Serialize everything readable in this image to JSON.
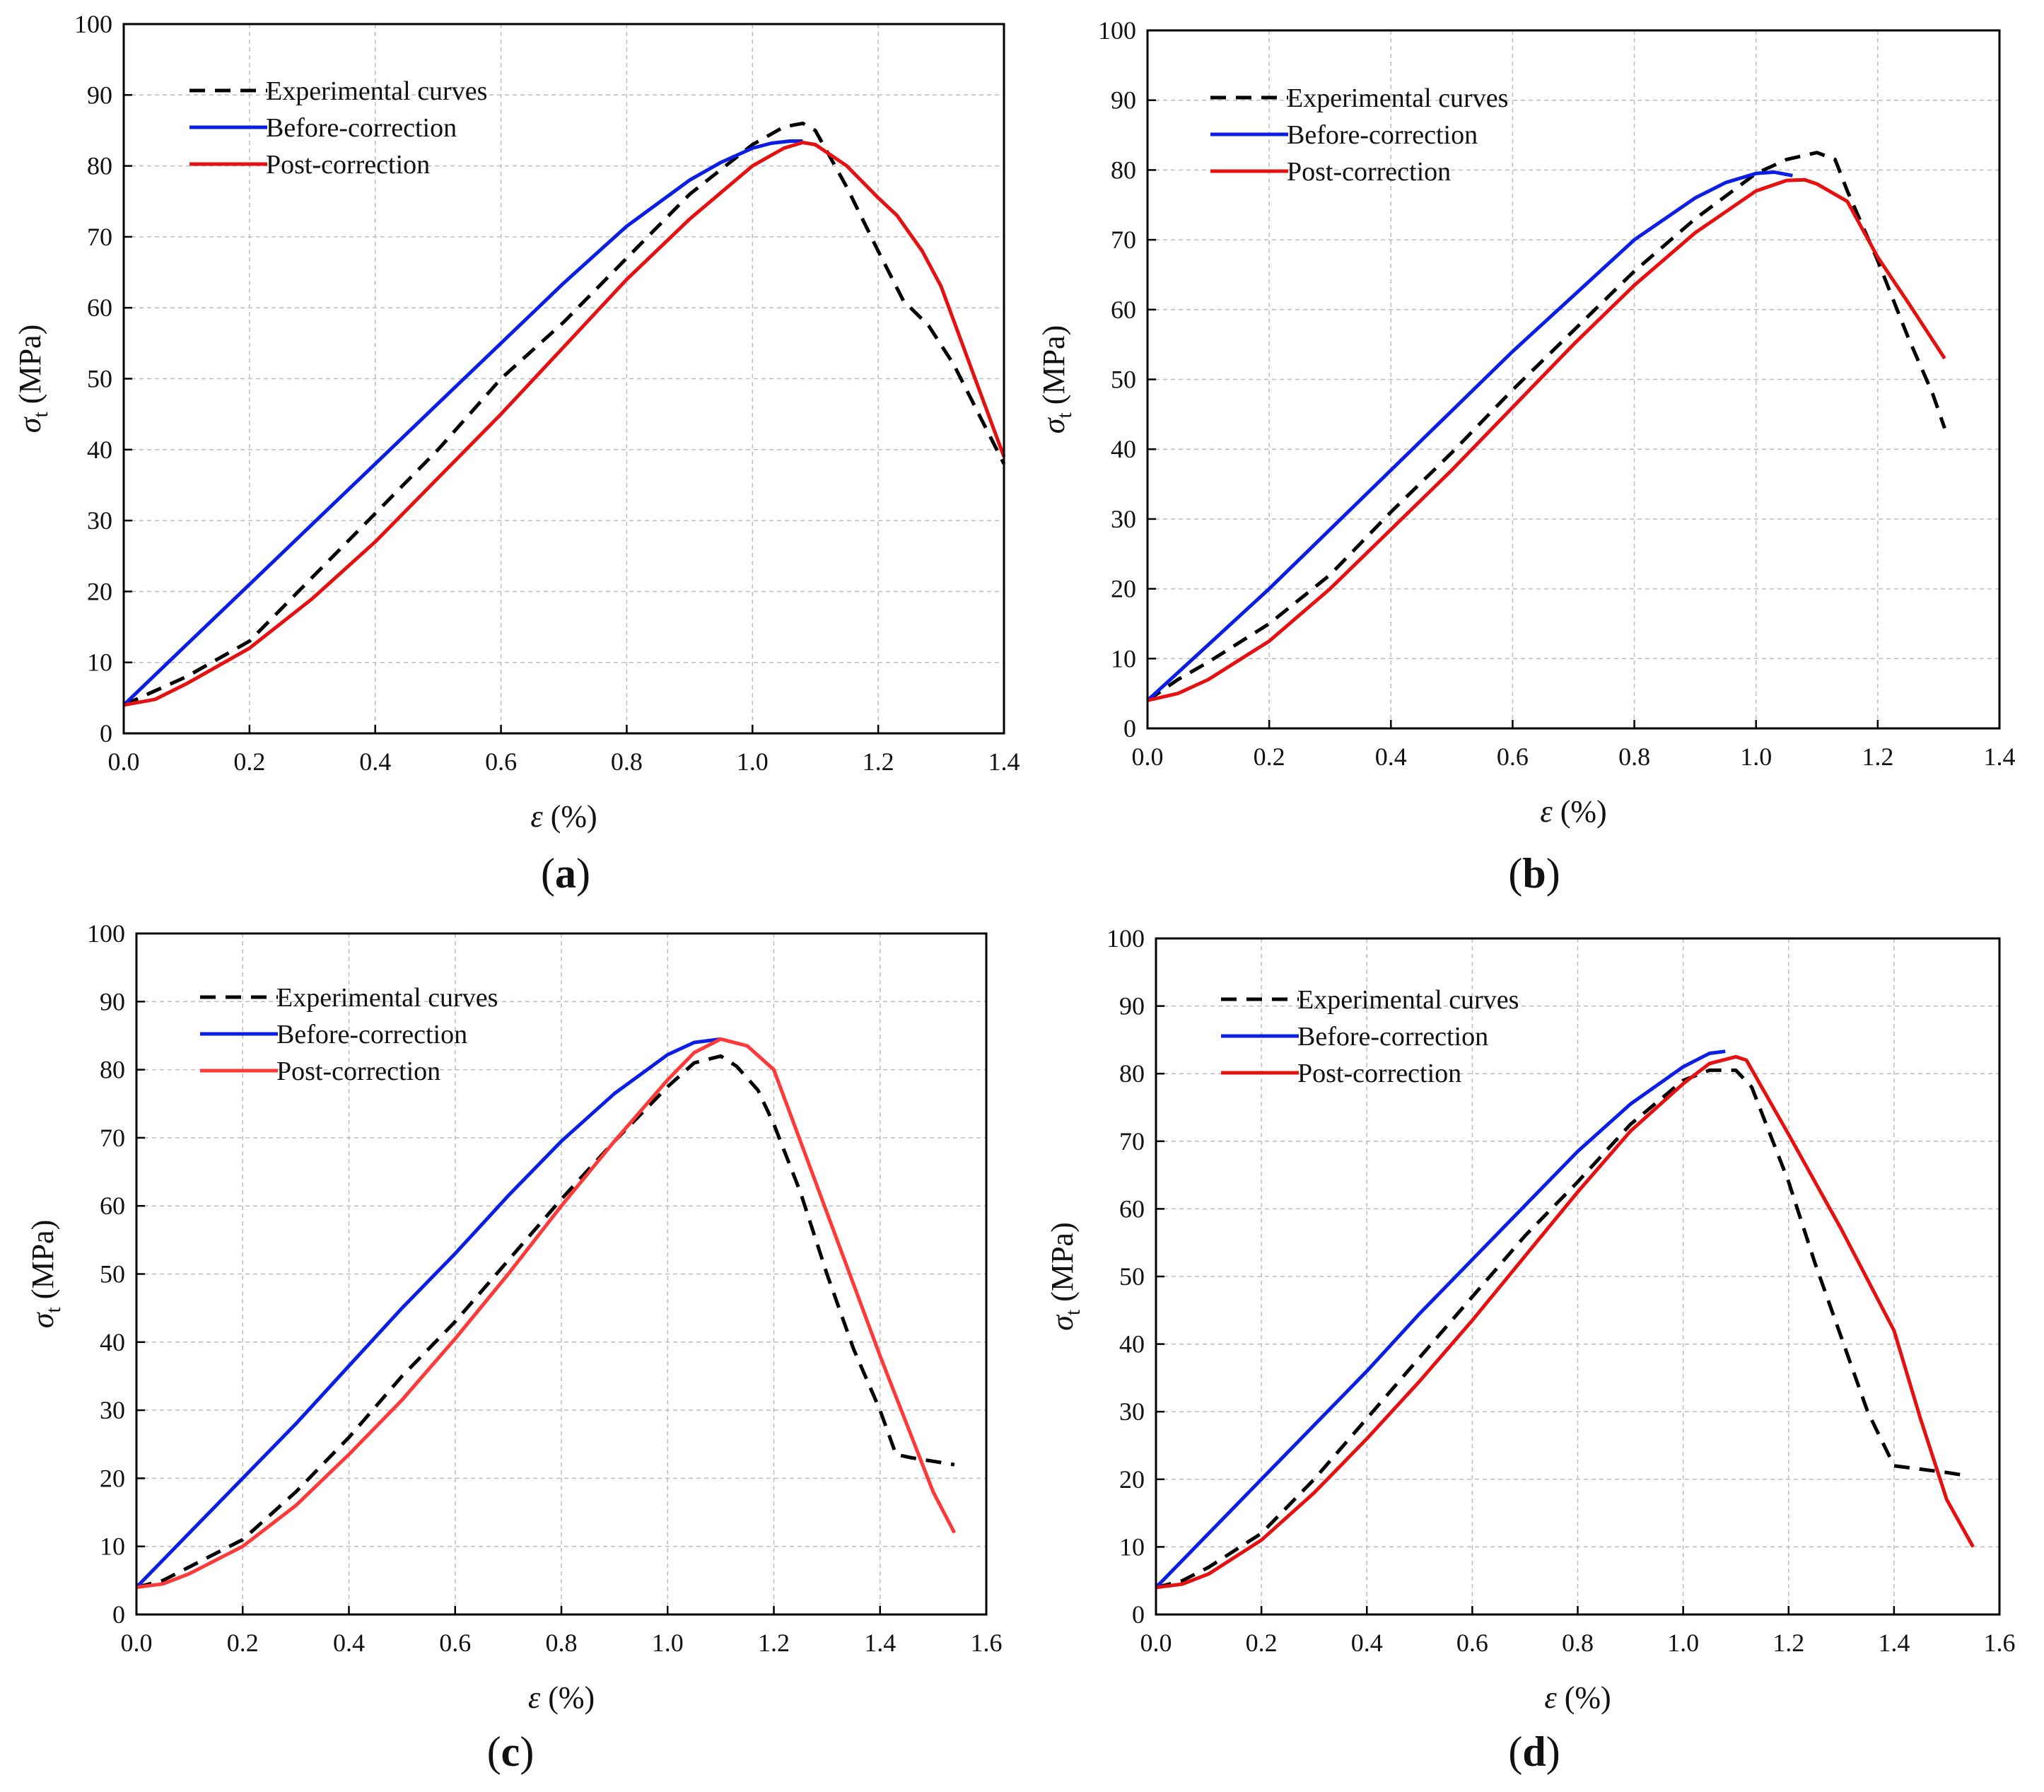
{
  "figure": {
    "legend_entries": [
      "Experimental curves",
      "Before-correction",
      "Post-correction"
    ],
    "series_colors": {
      "Experimental curves": "#000000",
      "Before-correction": "#0a1ee6",
      "Post-correction": "#e61010"
    }
  },
  "chart_data": [
    {
      "panel": "a",
      "panel_label": "a",
      "type": "line",
      "xlabel_symbol": "ε",
      "xlabel_unit": "(%)",
      "ylabel_symbol": "σ",
      "ylabel_sub": "t",
      "ylabel_unit": "(MPa)",
      "xlim": [
        0,
        1.4
      ],
      "ylim": [
        0,
        100
      ],
      "xticks": [
        "0.0",
        "0.2",
        "0.4",
        "0.6",
        "0.8",
        "1.0",
        "1.2",
        "1.4"
      ],
      "yticks": [
        "0",
        "10",
        "20",
        "30",
        "40",
        "50",
        "60",
        "70",
        "80",
        "90",
        "100"
      ],
      "grid": true,
      "legend_position": "top-left",
      "series": [
        {
          "name": "Experimental curves",
          "style": "dashed",
          "color": "#000000",
          "x": [
            0,
            0.05,
            0.1,
            0.2,
            0.3,
            0.4,
            0.5,
            0.6,
            0.7,
            0.8,
            0.9,
            1.0,
            1.05,
            1.08,
            1.1,
            1.15,
            1.2,
            1.24,
            1.28,
            1.32,
            1.36,
            1.4
          ],
          "y": [
            4,
            6,
            8,
            13,
            22,
            31,
            40,
            50,
            58,
            67,
            76,
            83,
            85.5,
            86,
            85,
            77,
            68,
            61,
            57.5,
            52,
            45,
            38
          ]
        },
        {
          "name": "Before-correction",
          "style": "solid",
          "color": "#0a1ee6",
          "x": [
            0,
            0.1,
            0.2,
            0.3,
            0.4,
            0.5,
            0.6,
            0.7,
            0.8,
            0.9,
            0.95,
            1.0,
            1.03,
            1.06,
            1.08
          ],
          "y": [
            4,
            12.5,
            21,
            29.5,
            38,
            46.5,
            55,
            63.5,
            71.5,
            78,
            80.5,
            82.5,
            83.2,
            83.5,
            83.5
          ]
        },
        {
          "name": "Post-correction",
          "style": "solid",
          "color": "#e61010",
          "x": [
            0,
            0.05,
            0.1,
            0.2,
            0.3,
            0.4,
            0.5,
            0.6,
            0.7,
            0.8,
            0.9,
            1.0,
            1.05,
            1.08,
            1.1,
            1.15,
            1.2,
            1.23,
            1.27,
            1.3,
            1.35,
            1.4
          ],
          "y": [
            4,
            4.8,
            7,
            12,
            19,
            27,
            36,
            45,
            54.5,
            64,
            72.5,
            80,
            82.5,
            83.3,
            83,
            80,
            75.5,
            73,
            68,
            63,
            51,
            39
          ]
        }
      ]
    },
    {
      "panel": "b",
      "panel_label": "b",
      "type": "line",
      "xlabel_symbol": "ε",
      "xlabel_unit": "(%)",
      "ylabel_symbol": "σ",
      "ylabel_sub": "t",
      "ylabel_unit": "(MPa)",
      "xlim": [
        0,
        1.4
      ],
      "ylim": [
        0,
        100
      ],
      "xticks": [
        "0.0",
        "0.2",
        "0.4",
        "0.6",
        "0.8",
        "1.0",
        "1.2",
        "1.4"
      ],
      "yticks": [
        "0",
        "10",
        "20",
        "30",
        "40",
        "50",
        "60",
        "70",
        "80",
        "90",
        "100"
      ],
      "grid": true,
      "legend_position": "top-left",
      "series": [
        {
          "name": "Experimental curves",
          "style": "dashed",
          "color": "#000000",
          "x": [
            0,
            0.05,
            0.1,
            0.2,
            0.3,
            0.4,
            0.5,
            0.6,
            0.7,
            0.8,
            0.9,
            1.0,
            1.05,
            1.1,
            1.13,
            1.15,
            1.2,
            1.25,
            1.29,
            1.31
          ],
          "y": [
            4,
            7,
            9.5,
            15,
            22,
            31,
            39.5,
            48.5,
            57,
            65.5,
            73,
            79.5,
            81.5,
            82.5,
            81.5,
            77,
            67,
            56,
            48,
            43
          ]
        },
        {
          "name": "Before-correction",
          "style": "solid",
          "color": "#0a1ee6",
          "x": [
            0,
            0.1,
            0.2,
            0.3,
            0.4,
            0.5,
            0.6,
            0.7,
            0.8,
            0.9,
            0.95,
            1.0,
            1.03,
            1.06
          ],
          "y": [
            4,
            12,
            20,
            28.5,
            37,
            45.5,
            54,
            62,
            70,
            76,
            78.2,
            79.5,
            79.7,
            79.2
          ]
        },
        {
          "name": "Post-correction",
          "style": "solid",
          "color": "#e61010",
          "x": [
            0,
            0.05,
            0.1,
            0.2,
            0.3,
            0.4,
            0.5,
            0.6,
            0.7,
            0.8,
            0.9,
            1.0,
            1.05,
            1.08,
            1.1,
            1.15,
            1.2,
            1.25,
            1.31
          ],
          "y": [
            4,
            5,
            7,
            12.5,
            20,
            28.5,
            37,
            46,
            55,
            63.5,
            71,
            77,
            78.5,
            78.6,
            78,
            75.5,
            67.5,
            61,
            53
          ]
        }
      ]
    },
    {
      "panel": "c",
      "panel_label": "c",
      "type": "line",
      "xlabel_symbol": "ε",
      "xlabel_unit": "(%)",
      "ylabel_symbol": "σ",
      "ylabel_sub": "t",
      "ylabel_unit": "(MPa)",
      "xlim": [
        0,
        1.6
      ],
      "ylim": [
        0,
        100
      ],
      "xticks": [
        "0.0",
        "0.2",
        "0.4",
        "0.6",
        "0.8",
        "1.0",
        "1.2",
        "1.4",
        "1.6"
      ],
      "yticks": [
        "0",
        "10",
        "20",
        "30",
        "40",
        "50",
        "60",
        "70",
        "80",
        "90",
        "100"
      ],
      "grid": true,
      "legend_position": "top-left",
      "series": [
        {
          "name": "Experimental curves",
          "style": "dashed",
          "color": "#000000",
          "x": [
            0,
            0.05,
            0.1,
            0.2,
            0.3,
            0.4,
            0.5,
            0.6,
            0.7,
            0.8,
            0.9,
            1.0,
            1.05,
            1.1,
            1.13,
            1.17,
            1.2,
            1.25,
            1.3,
            1.35,
            1.4,
            1.43,
            1.46,
            1.5,
            1.54
          ],
          "y": [
            4,
            5,
            7,
            11,
            18,
            26,
            35,
            43,
            52,
            61,
            69.5,
            77.5,
            81,
            82,
            80.5,
            77,
            72,
            62,
            50,
            39,
            30,
            23.5,
            23,
            22.5,
            22
          ]
        },
        {
          "name": "Before-correction",
          "style": "solid",
          "color": "#0a1ee6",
          "x": [
            0,
            0.1,
            0.2,
            0.3,
            0.4,
            0.5,
            0.6,
            0.7,
            0.8,
            0.9,
            1.0,
            1.05,
            1.1
          ],
          "y": [
            4,
            12,
            20,
            28,
            36.5,
            45,
            53,
            61.5,
            69.5,
            76.5,
            82.2,
            84,
            84.5
          ]
        },
        {
          "name": "Post-correction",
          "style": "solid",
          "color": "#ff3838",
          "x": [
            0,
            0.05,
            0.1,
            0.2,
            0.3,
            0.4,
            0.5,
            0.6,
            0.7,
            0.8,
            0.9,
            1.0,
            1.05,
            1.1,
            1.15,
            1.2,
            1.25,
            1.3,
            1.35,
            1.4,
            1.45,
            1.5,
            1.54
          ],
          "y": [
            4,
            4.5,
            6,
            10,
            16,
            23.5,
            31.5,
            40.5,
            50,
            60,
            69.5,
            78.5,
            82.5,
            84.5,
            83.5,
            80,
            69.5,
            59,
            48.5,
            38,
            28,
            18,
            12
          ]
        }
      ]
    },
    {
      "panel": "d",
      "panel_label": "d",
      "type": "line",
      "xlabel_symbol": "ε",
      "xlabel_unit": "(%)",
      "ylabel_symbol": "σ",
      "ylabel_sub": "t",
      "ylabel_unit": "(MPa)",
      "xlim": [
        0,
        1.6
      ],
      "ylim": [
        0,
        100
      ],
      "xticks": [
        "0.0",
        "0.2",
        "0.4",
        "0.6",
        "0.8",
        "1.0",
        "1.2",
        "1.4",
        "1.6"
      ],
      "yticks": [
        "0",
        "10",
        "20",
        "30",
        "40",
        "50",
        "60",
        "70",
        "80",
        "90",
        "100"
      ],
      "grid": true,
      "legend_position": "top-left",
      "series": [
        {
          "name": "Experimental curves",
          "style": "dashed",
          "color": "#000000",
          "x": [
            0,
            0.05,
            0.1,
            0.2,
            0.3,
            0.4,
            0.5,
            0.6,
            0.7,
            0.8,
            0.9,
            1.0,
            1.05,
            1.1,
            1.13,
            1.2,
            1.25,
            1.3,
            1.35,
            1.4,
            1.45,
            1.5,
            1.54
          ],
          "y": [
            4,
            5,
            7,
            12,
            20,
            29,
            38,
            47,
            56,
            64,
            72.5,
            79,
            80.5,
            80.5,
            78,
            64,
            52,
            41,
            30,
            22,
            21.5,
            21,
            20.5
          ]
        },
        {
          "name": "Before-correction",
          "style": "solid",
          "color": "#0a1ee6",
          "x": [
            0,
            0.1,
            0.2,
            0.3,
            0.4,
            0.5,
            0.6,
            0.7,
            0.8,
            0.9,
            1.0,
            1.05,
            1.08
          ],
          "y": [
            4,
            12,
            20,
            28,
            36,
            44.5,
            52.5,
            60.5,
            68.5,
            75.5,
            81,
            83,
            83.3
          ]
        },
        {
          "name": "Post-correction",
          "style": "solid",
          "color": "#e61010",
          "x": [
            0,
            0.05,
            0.1,
            0.2,
            0.3,
            0.4,
            0.5,
            0.6,
            0.7,
            0.8,
            0.9,
            1.0,
            1.05,
            1.1,
            1.12,
            1.2,
            1.3,
            1.4,
            1.45,
            1.5,
            1.55
          ],
          "y": [
            4,
            4.5,
            6,
            11,
            18,
            26,
            34.5,
            43.5,
            53,
            62.5,
            71.5,
            78.5,
            81.5,
            82.5,
            82,
            71,
            57,
            42,
            29,
            17,
            10
          ]
        }
      ]
    }
  ]
}
